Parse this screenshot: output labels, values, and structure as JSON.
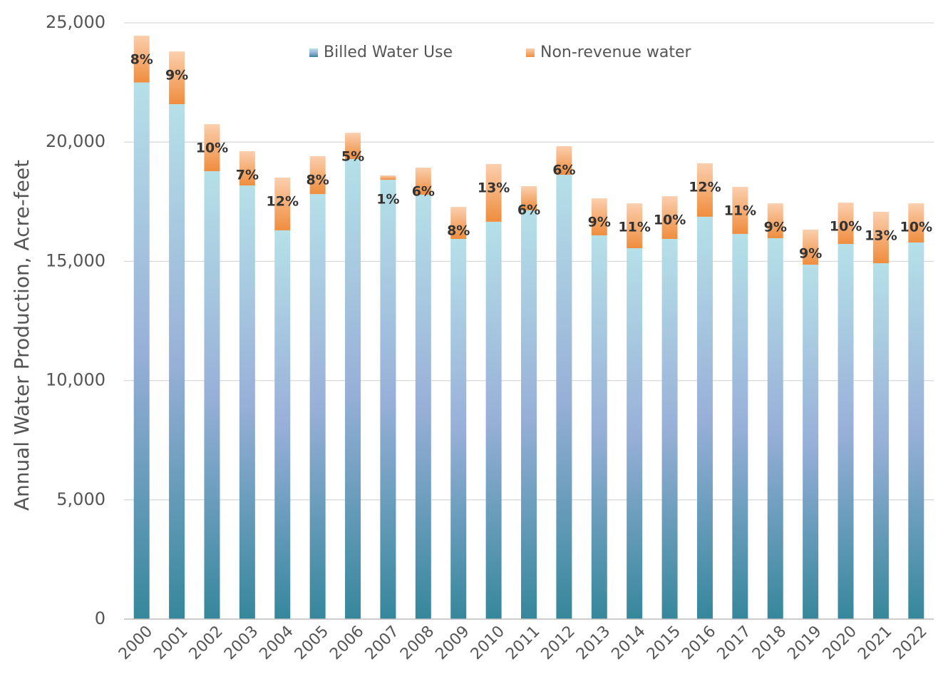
{
  "chart_data": {
    "type": "stacked_bar",
    "y_axis_label": "Annual Water Production, Acre-feet",
    "categories": [
      "2000",
      "2001",
      "2002",
      "2003",
      "2004",
      "2005",
      "2006",
      "2007",
      "2008",
      "2009",
      "2010",
      "2011",
      "2012",
      "2013",
      "2014",
      "2015",
      "2016",
      "2017",
      "2018",
      "2019",
      "2020",
      "2021",
      "2022"
    ],
    "series": [
      {
        "name": "Billed Water Use",
        "color": "#7fa9c9",
        "values": [
          22500,
          21590,
          18780,
          18180,
          16300,
          17820,
          19290,
          18420,
          17790,
          15940,
          16660,
          17140,
          18630,
          16090,
          15550,
          15940,
          16870,
          16150,
          15970,
          14860,
          15730,
          14920,
          15790
        ]
      },
      {
        "name": "Non-revenue water",
        "color": "#f5a86a",
        "values": [
          1960,
          2210,
          1970,
          1440,
          2210,
          1590,
          1100,
          180,
          1140,
          1340,
          2420,
          1010,
          1200,
          1550,
          1880,
          1790,
          2240,
          1970,
          1460,
          1470,
          1730,
          2160,
          1640
        ]
      }
    ],
    "percent_labels": [
      "8%",
      "9%",
      "10%",
      "7%",
      "12%",
      "8%",
      "5%",
      "1%",
      "6%",
      "8%",
      "13%",
      "6%",
      "6%",
      "9%",
      "11%",
      "10%",
      "12%",
      "11%",
      "9%",
      "9%",
      "10%",
      "13%",
      "10%"
    ],
    "ylim": [
      0,
      25000
    ],
    "yticks": [
      0,
      {
        "value": 5000,
        "label": "5,000"
      },
      {
        "value": 10000,
        "label": "10,000"
      },
      {
        "value": 15000,
        "label": "15,000"
      },
      {
        "value": 20000,
        "label": "20,000"
      },
      {
        "value": 25000,
        "label": "25,000"
      }
    ],
    "grid": true
  }
}
